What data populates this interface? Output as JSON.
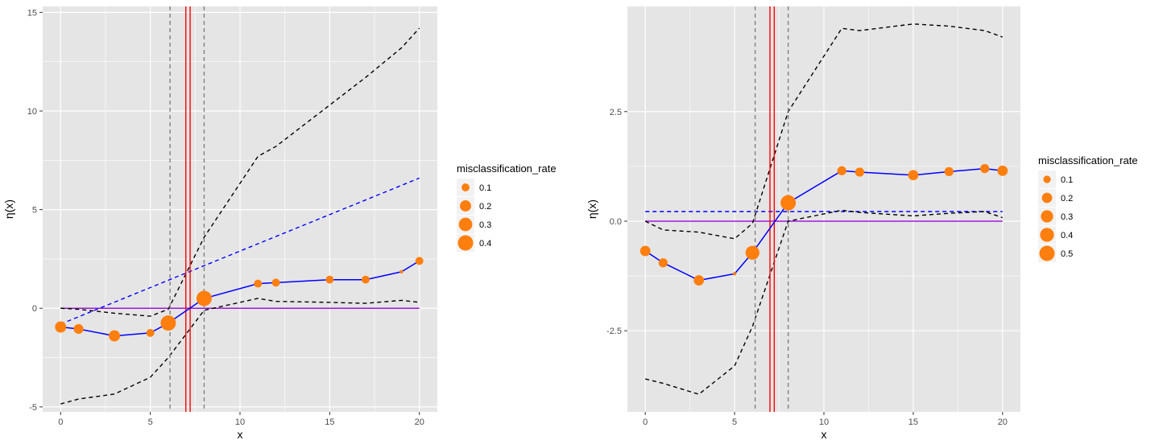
{
  "colors": {
    "panel_bg": "#e5e5e5",
    "grid": "#ffffff",
    "points": "#ff7f0e",
    "estimate_line": "#0000ff",
    "linear_fit": "#0000ff",
    "band": "#000000",
    "zero_line": "#9b1bd6",
    "threshold": "#ff0000",
    "threshold_ci": "#808080",
    "legend_key_bg": "#f2f2f2"
  },
  "chart_data": [
    {
      "type": "scatter",
      "xlabel": "x",
      "ylabel": "η(x)",
      "xlim": [
        -1,
        21
      ],
      "ylim": [
        -5.25,
        15.3
      ],
      "x_ticks": [
        0,
        5,
        10,
        15,
        20
      ],
      "x_tick_labels": [
        "0",
        "5",
        "10",
        "15",
        "20"
      ],
      "y_ticks": [
        -5,
        0,
        5,
        10,
        15
      ],
      "y_tick_labels": [
        "-5",
        "0",
        "5",
        "10",
        "15"
      ],
      "points": [
        {
          "x": 0,
          "y": -0.95,
          "rate": 0.2
        },
        {
          "x": 1,
          "y": -1.05,
          "rate": 0.15
        },
        {
          "x": 3,
          "y": -1.4,
          "rate": 0.2
        },
        {
          "x": 5,
          "y": -1.25,
          "rate": 0.1
        },
        {
          "x": 6,
          "y": -0.75,
          "rate": 0.4
        },
        {
          "x": 8,
          "y": 0.5,
          "rate": 0.4
        },
        {
          "x": 11,
          "y": 1.25,
          "rate": 0.1
        },
        {
          "x": 12,
          "y": 1.3,
          "rate": 0.1
        },
        {
          "x": 15,
          "y": 1.45,
          "rate": 0.1
        },
        {
          "x": 17,
          "y": 1.45,
          "rate": 0.1
        },
        {
          "x": 19,
          "y": 1.85,
          "rate": 0.05
        },
        {
          "x": 20,
          "y": 2.4,
          "rate": 0.1
        }
      ],
      "upper_band": {
        "x": [
          0,
          1,
          3,
          5,
          6,
          8,
          11,
          12,
          15,
          17,
          19,
          20
        ],
        "y": [
          0,
          -0.05,
          -0.25,
          -0.4,
          -0.05,
          3.6,
          7.7,
          8.2,
          10.3,
          11.7,
          13.2,
          14.2
        ]
      },
      "lower_band": {
        "x": [
          0,
          1,
          3,
          5,
          6,
          8,
          11,
          12,
          15,
          17,
          19,
          20
        ],
        "y": [
          -4.85,
          -4.6,
          -4.35,
          -3.5,
          -2.5,
          -0.1,
          0.5,
          0.35,
          0.3,
          0.25,
          0.4,
          0.3
        ]
      },
      "linear_fit": {
        "x": [
          0,
          20
        ],
        "y": [
          -0.8,
          6.6
        ]
      },
      "zero_line": 0,
      "threshold": 7.1,
      "threshold_ci": [
        6.1,
        8.0
      ],
      "legend": {
        "title": "misclassification_rate",
        "labels": [
          "0.1",
          "0.2",
          "0.3",
          "0.4"
        ],
        "values": [
          0.1,
          0.2,
          0.3,
          0.4
        ]
      },
      "size_domain": [
        0.05,
        0.4
      ]
    },
    {
      "type": "scatter",
      "xlabel": "x",
      "ylabel": "η(x)",
      "xlim": [
        -1,
        21
      ],
      "ylim": [
        -4.35,
        4.9
      ],
      "x_ticks": [
        0,
        5,
        10,
        15,
        20
      ],
      "x_tick_labels": [
        "0",
        "5",
        "10",
        "15",
        "20"
      ],
      "y_ticks": [
        -2.5,
        0,
        2.5
      ],
      "y_tick_labels": [
        "-2.5",
        "0.0",
        "2.5"
      ],
      "points": [
        {
          "x": 0,
          "y": -0.68,
          "rate": 0.2
        },
        {
          "x": 1,
          "y": -0.95,
          "rate": 0.15
        },
        {
          "x": 3,
          "y": -1.35,
          "rate": 0.2
        },
        {
          "x": 5,
          "y": -1.2,
          "rate": 0.05
        },
        {
          "x": 6,
          "y": -0.72,
          "rate": 0.4
        },
        {
          "x": 8,
          "y": 0.42,
          "rate": 0.5
        },
        {
          "x": 11,
          "y": 1.15,
          "rate": 0.15
        },
        {
          "x": 12,
          "y": 1.12,
          "rate": 0.15
        },
        {
          "x": 15,
          "y": 1.05,
          "rate": 0.2
        },
        {
          "x": 17,
          "y": 1.13,
          "rate": 0.15
        },
        {
          "x": 19,
          "y": 1.2,
          "rate": 0.15
        },
        {
          "x": 20,
          "y": 1.15,
          "rate": 0.2
        }
      ],
      "upper_band": {
        "x": [
          0,
          1,
          3,
          5,
          6,
          8,
          11,
          12,
          15,
          17,
          19,
          20
        ],
        "y": [
          0,
          -0.2,
          -0.25,
          -0.4,
          -0.05,
          2.5,
          4.4,
          4.35,
          4.5,
          4.45,
          4.35,
          4.2
        ]
      },
      "lower_band": {
        "x": [
          0,
          1,
          3,
          5,
          6,
          8,
          11,
          12,
          15,
          17,
          19,
          20
        ],
        "y": [
          -3.6,
          -3.7,
          -3.95,
          -3.3,
          -2.4,
          0.0,
          0.25,
          0.2,
          0.12,
          0.18,
          0.22,
          0.08
        ]
      },
      "linear_fit": {
        "x": [
          0,
          20
        ],
        "y": [
          0.22,
          0.22
        ]
      },
      "zero_line": 0,
      "threshold": 7.1,
      "threshold_ci": [
        6.15,
        8.0
      ],
      "legend": {
        "title": "misclassification_rate",
        "labels": [
          "0.1",
          "0.2",
          "0.3",
          "0.4",
          "0.5"
        ],
        "values": [
          0.1,
          0.2,
          0.3,
          0.4,
          0.5
        ]
      },
      "size_domain": [
        0.05,
        0.5
      ]
    }
  ]
}
